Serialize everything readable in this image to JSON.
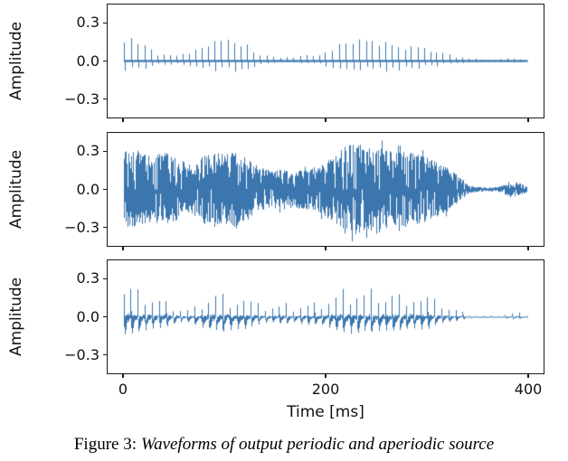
{
  "caption": {
    "prefix": "Figure 3:",
    "text": "Waveforms of output periodic and aperiodic source"
  },
  "axes": {
    "ylabel": "Amplitude",
    "xlabel": "Time [ms]",
    "ytick_labels": [
      "0.3",
      "0.0",
      "−0.3"
    ],
    "ytick_values": [
      0.3,
      0.0,
      -0.3
    ],
    "xtick_labels": [
      "0",
      "200",
      "400"
    ],
    "xtick_values": [
      0,
      200,
      400
    ],
    "xlim": [
      -16,
      416
    ],
    "ylim": [
      -0.45,
      0.45
    ],
    "line_color": "#3b76af",
    "spine_color": "#1a1a1a",
    "grid": false
  },
  "chart_data": [
    {
      "type": "line",
      "texture": "pulse-train",
      "description": "sparse bipolar pulse train around zero baseline",
      "pulse_period_ms": 6.5,
      "duration_ms": 400,
      "t_ms": [
        0,
        10,
        20,
        30,
        40,
        50,
        60,
        70,
        80,
        90,
        100,
        110,
        120,
        130,
        140,
        150,
        160,
        170,
        180,
        190,
        200,
        210,
        220,
        230,
        240,
        250,
        260,
        270,
        280,
        290,
        300,
        310,
        320,
        330,
        340,
        350,
        360,
        370,
        380,
        390,
        400
      ],
      "envelope": [
        0.13,
        0.17,
        0.12,
        0.06,
        0.05,
        0.05,
        0.05,
        0.07,
        0.13,
        0.15,
        0.15,
        0.14,
        0.13,
        0.07,
        0.04,
        0.03,
        0.03,
        0.03,
        0.04,
        0.05,
        0.07,
        0.12,
        0.14,
        0.15,
        0.14,
        0.13,
        0.13,
        0.12,
        0.11,
        0.1,
        0.09,
        0.07,
        0.05,
        0.03,
        0.02,
        0.015,
        0.01,
        0.01,
        0.02,
        0.02,
        0.01
      ]
    },
    {
      "type": "line",
      "texture": "noise",
      "description": "dense noise-like waveform with amplitude-modulated envelope",
      "duration_ms": 400,
      "t_ms": [
        0,
        10,
        20,
        30,
        40,
        50,
        60,
        70,
        80,
        90,
        100,
        110,
        120,
        130,
        140,
        150,
        160,
        170,
        180,
        190,
        200,
        210,
        220,
        230,
        240,
        250,
        260,
        270,
        280,
        290,
        300,
        310,
        320,
        330,
        340,
        350,
        360,
        370,
        380,
        390,
        400
      ],
      "envelope": [
        0.3,
        0.33,
        0.28,
        0.26,
        0.3,
        0.27,
        0.18,
        0.22,
        0.27,
        0.3,
        0.28,
        0.3,
        0.27,
        0.2,
        0.16,
        0.15,
        0.16,
        0.15,
        0.16,
        0.18,
        0.22,
        0.3,
        0.34,
        0.38,
        0.33,
        0.36,
        0.32,
        0.3,
        0.3,
        0.28,
        0.26,
        0.22,
        0.18,
        0.12,
        0.04,
        0.02,
        0.015,
        0.015,
        0.05,
        0.06,
        0.02
      ]
    },
    {
      "type": "line",
      "texture": "periodic-pulse",
      "description": "periodic sharp pulses with damped ringing tails",
      "pulse_period_ms": 7.0,
      "duration_ms": 400,
      "t_ms": [
        0,
        10,
        20,
        30,
        40,
        50,
        60,
        70,
        80,
        90,
        100,
        110,
        120,
        130,
        140,
        150,
        160,
        170,
        180,
        190,
        200,
        210,
        220,
        230,
        240,
        250,
        260,
        270,
        280,
        290,
        300,
        310,
        320,
        330,
        340,
        350,
        360,
        370,
        380,
        390,
        400
      ],
      "envelope": [
        0.3,
        0.27,
        0.22,
        0.18,
        0.15,
        0.12,
        0.07,
        0.1,
        0.2,
        0.23,
        0.22,
        0.21,
        0.18,
        0.12,
        0.1,
        0.1,
        0.11,
        0.1,
        0.11,
        0.12,
        0.14,
        0.22,
        0.25,
        0.26,
        0.24,
        0.25,
        0.23,
        0.22,
        0.22,
        0.2,
        0.18,
        0.14,
        0.1,
        0.06,
        0.03,
        0.012,
        0.01,
        0.01,
        0.03,
        0.04,
        0.015
      ]
    }
  ]
}
